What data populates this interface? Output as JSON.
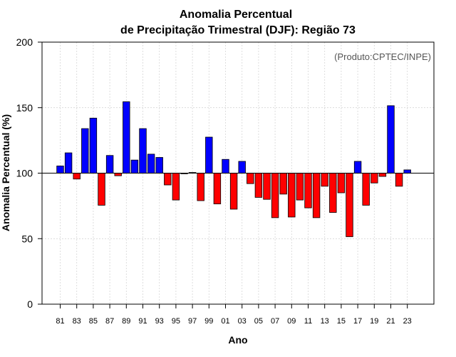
{
  "chart_data": {
    "type": "bar",
    "title": "Anomalia Percentual",
    "subtitle": "de Precipitação Trimestral (DJF): Região 73",
    "xlabel": "Ano",
    "ylabel": "Anomalia Percentual (%)",
    "credit": "(Produto:CPTEC/INPE)",
    "ylim": [
      0,
      200
    ],
    "yticks": [
      0,
      50,
      100,
      150,
      200
    ],
    "baseline": 100,
    "colors": {
      "above": "#0000ff",
      "below": "#ff0000",
      "outline": "#000000"
    },
    "categories": [
      "81",
      "82",
      "83",
      "84",
      "85",
      "86",
      "87",
      "88",
      "89",
      "90",
      "91",
      "92",
      "93",
      "94",
      "95",
      "96",
      "97",
      "98",
      "99",
      "00",
      "01",
      "02",
      "03",
      "04",
      "05",
      "06",
      "07",
      "08",
      "09",
      "10",
      "11",
      "12",
      "13",
      "14",
      "15",
      "16",
      "17",
      "18",
      "19",
      "20",
      "21",
      "22",
      "23"
    ],
    "tick_labels": [
      "81",
      "83",
      "85",
      "87",
      "89",
      "91",
      "93",
      "95",
      "97",
      "99",
      "01",
      "03",
      "05",
      "07",
      "09",
      "11",
      "13",
      "15",
      "17",
      "19",
      "21",
      "23"
    ],
    "values": [
      105.5,
      115.5,
      95.5,
      134,
      142,
      75.5,
      113.5,
      98,
      154.5,
      110,
      134,
      114.5,
      112,
      91,
      79.5,
      99.5,
      100.5,
      79,
      127.5,
      76.5,
      110.5,
      72.5,
      109,
      92,
      81.5,
      80,
      66,
      84,
      66.5,
      79.5,
      73.5,
      66,
      90,
      70,
      85,
      51.5,
      109,
      75.5,
      92.5,
      97.5,
      151.5,
      90,
      102.5
    ]
  }
}
